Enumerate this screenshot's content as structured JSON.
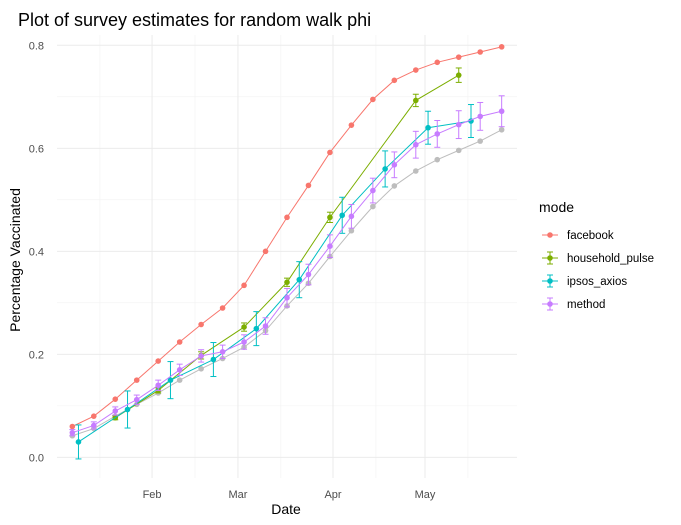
{
  "chart_data": {
    "type": "line",
    "title": "Plot of survey estimates for random walk phi",
    "xlabel": "Date",
    "ylabel": "Percentage Vaccinated",
    "x_ticks": [
      "Feb",
      "Mar",
      "Apr",
      "May"
    ],
    "x_tick_dates": [
      "2021-02-01",
      "2021-03-01",
      "2021-04-01",
      "2021-05-01"
    ],
    "xlim": [
      "2021-01-01",
      "2021-05-31"
    ],
    "ylim": [
      -0.04,
      0.82
    ],
    "y_ticks": [
      "0.0",
      "0.2",
      "0.4",
      "0.6",
      "0.8"
    ],
    "y_tick_values": [
      0.0,
      0.2,
      0.4,
      0.6,
      0.8
    ],
    "grid": true,
    "legend_position": "right",
    "legend_title": "mode",
    "series": [
      {
        "name": "facebook",
        "color": "#F8766D",
        "error_bars": false,
        "x": [
          "2021-01-06",
          "2021-01-13",
          "2021-01-20",
          "2021-01-27",
          "2021-02-03",
          "2021-02-10",
          "2021-02-17",
          "2021-02-24",
          "2021-03-03",
          "2021-03-10",
          "2021-03-17",
          "2021-03-24",
          "2021-03-31",
          "2021-04-07",
          "2021-04-14",
          "2021-04-21",
          "2021-04-28",
          "2021-05-05",
          "2021-05-12",
          "2021-05-19",
          "2021-05-26"
        ],
        "y": [
          0.06,
          0.08,
          0.113,
          0.15,
          0.187,
          0.224,
          0.258,
          0.29,
          0.334,
          0.4,
          0.466,
          0.528,
          0.592,
          0.645,
          0.695,
          0.732,
          0.752,
          0.767,
          0.777,
          0.787,
          0.797
        ]
      },
      {
        "name": "household_pulse",
        "color": "#7CAE00",
        "error_bars": true,
        "x": [
          "2021-01-20",
          "2021-02-03",
          "2021-02-17",
          "2021-03-03",
          "2021-03-17",
          "2021-03-31",
          "2021-04-28",
          "2021-05-12"
        ],
        "y": [
          0.077,
          0.13,
          0.198,
          0.253,
          0.34,
          0.466,
          0.693,
          0.742
        ],
        "err": [
          0.004,
          0.005,
          0.007,
          0.008,
          0.008,
          0.01,
          0.012,
          0.014
        ]
      },
      {
        "name": "ipsos_axios",
        "color": "#00BFC4",
        "error_bars": true,
        "x": [
          "2021-01-08",
          "2021-01-24",
          "2021-02-07",
          "2021-02-21",
          "2021-03-07",
          "2021-03-21",
          "2021-04-04",
          "2021-04-18",
          "2021-05-02",
          "2021-05-16"
        ],
        "y": [
          0.03,
          0.093,
          0.15,
          0.19,
          0.25,
          0.345,
          0.47,
          0.56,
          0.64,
          0.653
        ],
        "err": [
          0.033,
          0.036,
          0.036,
          0.033,
          0.033,
          0.035,
          0.035,
          0.035,
          0.032,
          0.032
        ]
      },
      {
        "name": "method",
        "color": "#C77CFF",
        "error_bars": true,
        "x": [
          "2021-01-06",
          "2021-01-13",
          "2021-01-20",
          "2021-01-27",
          "2021-02-03",
          "2021-02-10",
          "2021-02-17",
          "2021-02-24",
          "2021-03-03",
          "2021-03-10",
          "2021-03-17",
          "2021-03-24",
          "2021-03-31",
          "2021-04-07",
          "2021-04-14",
          "2021-04-21",
          "2021-04-28",
          "2021-05-05",
          "2021-05-12",
          "2021-05-19",
          "2021-05-26"
        ],
        "y": [
          0.048,
          0.062,
          0.09,
          0.112,
          0.14,
          0.17,
          0.197,
          0.205,
          0.224,
          0.255,
          0.31,
          0.355,
          0.41,
          0.468,
          0.518,
          0.568,
          0.607,
          0.628,
          0.646,
          0.662,
          0.672
        ],
        "err": [
          0.006,
          0.007,
          0.008,
          0.009,
          0.01,
          0.011,
          0.012,
          0.013,
          0.014,
          0.016,
          0.018,
          0.02,
          0.022,
          0.023,
          0.024,
          0.025,
          0.026,
          0.026,
          0.027,
          0.027,
          0.03
        ]
      },
      {
        "color": "#BDBDBD",
        "error_bars": false,
        "in_legend": false,
        "x": [
          "2021-01-06",
          "2021-01-13",
          "2021-01-20",
          "2021-01-27",
          "2021-02-03",
          "2021-02-10",
          "2021-02-17",
          "2021-02-24",
          "2021-03-03",
          "2021-03-10",
          "2021-03-17",
          "2021-03-24",
          "2021-03-31",
          "2021-04-07",
          "2021-04-14",
          "2021-04-21",
          "2021-04-28",
          "2021-05-05",
          "2021-05-12",
          "2021-05-19",
          "2021-05-26"
        ],
        "y": [
          0.042,
          0.056,
          0.08,
          0.103,
          0.125,
          0.15,
          0.172,
          0.192,
          0.214,
          0.246,
          0.294,
          0.338,
          0.39,
          0.44,
          0.487,
          0.527,
          0.556,
          0.578,
          0.596,
          0.614,
          0.636
        ]
      }
    ]
  }
}
